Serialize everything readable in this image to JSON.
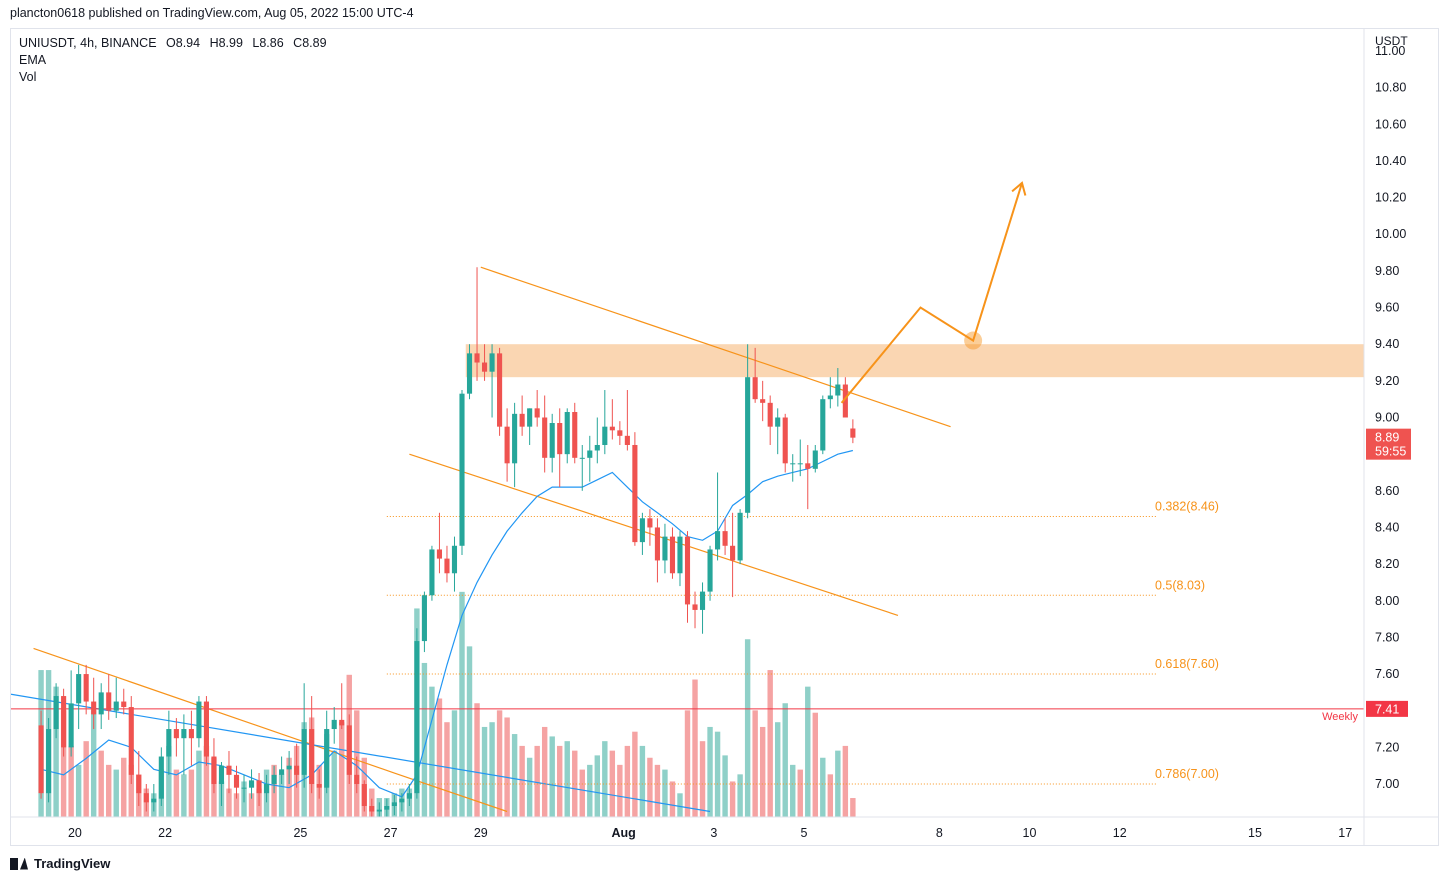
{
  "header": {
    "publisher_line": "plancton0618 published on TradingView.com, Aug 05, 2022 15:00 UTC-4"
  },
  "legend": {
    "symbol": "UNIUSDT, 4h, BINANCE",
    "open": "O8.94",
    "high": "H8.99",
    "low": "L8.86",
    "close": "C8.89",
    "ema_label": "EMA",
    "vol_label": "Vol"
  },
  "footer": {
    "brand": "TradingView"
  },
  "colors": {
    "up": "#26a69a",
    "down": "#ef5350",
    "ema": "#2196f3",
    "drawing": "#f7931a",
    "zone": "#f9cfa5",
    "weekly": "#f23645",
    "vol_up": "#8fd0c8",
    "vol_down": "#f5a3a3",
    "axis_text": "#131722"
  },
  "chart_data": {
    "type": "candlestick",
    "symbol": "UNIUSDT",
    "timeframe": "4h",
    "exchange": "BINANCE",
    "ylabel": "USDT",
    "ylim": [
      6.82,
      11.12
    ],
    "y_ticks": [
      "11.00",
      "10.80",
      "10.60",
      "10.40",
      "10.20",
      "10.00",
      "9.80",
      "9.60",
      "9.40",
      "9.20",
      "9.00",
      "8.60",
      "8.40",
      "8.20",
      "8.00",
      "7.80",
      "7.60",
      "7.20",
      "7.00"
    ],
    "x_ticks": [
      {
        "label": "20",
        "x": 4.5
      },
      {
        "label": "22",
        "x": 16.5
      },
      {
        "label": "25",
        "x": 34.5
      },
      {
        "label": "27",
        "x": 46.5
      },
      {
        "label": "29",
        "x": 58.5
      },
      {
        "label": "Aug",
        "x": 77.5
      },
      {
        "label": "3",
        "x": 89.5
      },
      {
        "label": "5",
        "x": 101.5
      },
      {
        "label": "8",
        "x": 119.5
      },
      {
        "label": "10",
        "x": 131.5
      },
      {
        "label": "12",
        "x": 143.5
      },
      {
        "label": "15",
        "x": 161.5
      },
      {
        "label": "17",
        "x": 173.5
      }
    ],
    "x_range": [
      -4,
      176
    ],
    "candles": [
      [
        7.32,
        7.4,
        6.92,
        6.95
      ],
      [
        6.95,
        7.36,
        6.9,
        7.3
      ],
      [
        7.3,
        7.55,
        7.25,
        7.48
      ],
      [
        7.48,
        7.52,
        7.15,
        7.2
      ],
      [
        7.2,
        7.62,
        7.15,
        7.44
      ],
      [
        7.44,
        7.65,
        7.3,
        7.6
      ],
      [
        7.6,
        7.65,
        7.38,
        7.45
      ],
      [
        7.45,
        7.58,
        7.3,
        7.38
      ],
      [
        7.38,
        7.55,
        7.3,
        7.5
      ],
      [
        7.5,
        7.6,
        7.35,
        7.4
      ],
      [
        7.4,
        7.58,
        7.36,
        7.45
      ],
      [
        7.45,
        7.52,
        7.38,
        7.42
      ],
      [
        7.42,
        7.48,
        7.0,
        7.05
      ],
      [
        7.05,
        7.18,
        6.88,
        6.95
      ],
      [
        6.95,
        7.0,
        6.85,
        6.9
      ],
      [
        6.9,
        7.0,
        6.85,
        6.92
      ],
      [
        6.92,
        7.2,
        6.88,
        7.15
      ],
      [
        7.15,
        7.4,
        7.05,
        7.3
      ],
      [
        7.3,
        7.36,
        7.15,
        7.25
      ],
      [
        7.25,
        7.38,
        7.05,
        7.3
      ],
      [
        7.3,
        7.4,
        7.1,
        7.25
      ],
      [
        7.25,
        7.48,
        7.2,
        7.45
      ],
      [
        7.45,
        7.48,
        7.1,
        7.15
      ],
      [
        7.15,
        7.25,
        6.95,
        7.0
      ],
      [
        7.0,
        7.12,
        6.88,
        7.1
      ],
      [
        7.1,
        7.18,
        6.95,
        7.05
      ],
      [
        7.05,
        7.1,
        6.92,
        6.98
      ],
      [
        6.98,
        7.05,
        6.9,
        6.98
      ],
      [
        6.98,
        7.08,
        6.92,
        7.02
      ],
      [
        7.02,
        7.06,
        6.88,
        6.95
      ],
      [
        6.95,
        7.05,
        6.9,
        7.0
      ],
      [
        7.0,
        7.1,
        6.95,
        7.05
      ],
      [
        7.05,
        7.15,
        7.0,
        7.08
      ],
      [
        7.08,
        7.18,
        7.0,
        7.1
      ],
      [
        7.1,
        7.22,
        6.98,
        7.05
      ],
      [
        7.05,
        7.55,
        6.98,
        7.3
      ],
      [
        7.3,
        7.48,
        6.95,
        7.0
      ],
      [
        7.0,
        7.08,
        6.92,
        6.98
      ],
      [
        6.98,
        7.4,
        6.95,
        7.3
      ],
      [
        7.3,
        7.42,
        7.22,
        7.35
      ],
      [
        7.35,
        7.55,
        7.3,
        7.32
      ],
      [
        7.32,
        7.38,
        7.0,
        7.05
      ],
      [
        7.05,
        7.15,
        6.95,
        7.0
      ],
      [
        7.0,
        7.02,
        6.85,
        6.88
      ],
      [
        6.88,
        6.92,
        6.8,
        6.85
      ],
      [
        6.85,
        6.9,
        6.8,
        6.86
      ],
      [
        6.86,
        6.92,
        6.82,
        6.88
      ],
      [
        6.88,
        6.94,
        6.83,
        6.9
      ],
      [
        6.9,
        6.95,
        6.85,
        6.92
      ],
      [
        6.92,
        7.0,
        6.88,
        6.95
      ],
      [
        6.95,
        7.85,
        6.92,
        7.78
      ],
      [
        7.78,
        8.05,
        7.72,
        8.03
      ],
      [
        8.03,
        8.3,
        8.0,
        8.28
      ],
      [
        8.28,
        8.48,
        8.15,
        8.23
      ],
      [
        8.23,
        8.3,
        8.1,
        8.15
      ],
      [
        8.15,
        8.35,
        8.05,
        8.3
      ],
      [
        8.3,
        9.15,
        8.25,
        9.13
      ],
      [
        9.13,
        9.4,
        9.1,
        9.35
      ],
      [
        9.35,
        9.82,
        9.2,
        9.3
      ],
      [
        9.3,
        9.4,
        9.2,
        9.25
      ],
      [
        9.25,
        9.4,
        9.0,
        9.35
      ],
      [
        9.35,
        9.38,
        8.9,
        8.95
      ],
      [
        8.95,
        9.05,
        8.65,
        8.75
      ],
      [
        8.75,
        9.08,
        8.62,
        9.02
      ],
      [
        9.02,
        9.12,
        8.9,
        8.95
      ],
      [
        8.95,
        9.05,
        8.85,
        9.05
      ],
      [
        9.05,
        9.15,
        8.95,
        9.0
      ],
      [
        9.0,
        9.12,
        8.7,
        8.78
      ],
      [
        8.78,
        9.02,
        8.7,
        8.97
      ],
      [
        8.97,
        9.05,
        8.62,
        8.8
      ],
      [
        8.8,
        9.05,
        8.75,
        9.03
      ],
      [
        9.03,
        9.08,
        8.75,
        8.78
      ],
      [
        8.78,
        8.85,
        8.6,
        8.78
      ],
      [
        8.78,
        8.9,
        8.65,
        8.82
      ],
      [
        8.82,
        9.0,
        8.75,
        8.85
      ],
      [
        8.85,
        9.15,
        8.8,
        8.95
      ],
      [
        8.95,
        9.1,
        8.88,
        8.93
      ],
      [
        8.93,
        8.98,
        8.85,
        8.9
      ],
      [
        8.9,
        9.15,
        8.82,
        8.85
      ],
      [
        8.85,
        8.92,
        8.3,
        8.32
      ],
      [
        8.32,
        8.48,
        8.25,
        8.45
      ],
      [
        8.45,
        8.5,
        8.3,
        8.4
      ],
      [
        8.4,
        8.45,
        8.1,
        8.22
      ],
      [
        8.22,
        8.42,
        8.15,
        8.35
      ],
      [
        8.35,
        8.4,
        8.12,
        8.15
      ],
      [
        8.15,
        8.38,
        8.08,
        8.35
      ],
      [
        8.35,
        8.38,
        7.88,
        7.98
      ],
      [
        7.98,
        8.05,
        7.85,
        7.95
      ],
      [
        7.95,
        8.1,
        7.82,
        8.05
      ],
      [
        8.05,
        8.3,
        8.0,
        8.28
      ],
      [
        8.28,
        8.7,
        8.22,
        8.38
      ],
      [
        8.38,
        8.45,
        8.25,
        8.3
      ],
      [
        8.3,
        8.48,
        8.02,
        8.22
      ],
      [
        8.22,
        8.5,
        8.2,
        8.48
      ],
      [
        8.48,
        9.4,
        8.45,
        9.22
      ],
      [
        9.22,
        9.38,
        9.08,
        9.1
      ],
      [
        9.1,
        9.2,
        8.98,
        9.08
      ],
      [
        9.08,
        9.12,
        8.85,
        8.95
      ],
      [
        8.95,
        9.05,
        8.8,
        9.0
      ],
      [
        9.0,
        9.02,
        8.7,
        8.75
      ],
      [
        8.75,
        8.8,
        8.65,
        8.75
      ],
      [
        8.75,
        8.88,
        8.68,
        8.75
      ],
      [
        8.75,
        8.85,
        8.5,
        8.72
      ],
      [
        8.72,
        8.85,
        8.7,
        8.82
      ],
      [
        8.82,
        9.12,
        8.8,
        9.1
      ],
      [
        9.1,
        9.22,
        9.05,
        9.12
      ],
      [
        9.12,
        9.27,
        9.06,
        9.18
      ],
      [
        9.18,
        9.22,
        9.0,
        9.0
      ],
      [
        8.94,
        8.99,
        8.86,
        8.89
      ]
    ],
    "volume": [
      [
        0.62,
        "up"
      ],
      [
        0.62,
        "up"
      ],
      [
        0.55,
        "up"
      ],
      [
        0.45,
        "down"
      ],
      [
        0.3,
        "down"
      ],
      [
        0.22,
        "up"
      ],
      [
        0.32,
        "down"
      ],
      [
        0.45,
        "up"
      ],
      [
        0.28,
        "down"
      ],
      [
        0.22,
        "down"
      ],
      [
        0.2,
        "up"
      ],
      [
        0.25,
        "down"
      ],
      [
        0.22,
        "down"
      ],
      [
        0.18,
        "down"
      ],
      [
        0.12,
        "down"
      ],
      [
        0.1,
        "up"
      ],
      [
        0.2,
        "up"
      ],
      [
        0.3,
        "up"
      ],
      [
        0.2,
        "down"
      ],
      [
        0.18,
        "up"
      ],
      [
        0.2,
        "down"
      ],
      [
        0.28,
        "up"
      ],
      [
        0.3,
        "down"
      ],
      [
        0.25,
        "down"
      ],
      [
        0.15,
        "up"
      ],
      [
        0.12,
        "down"
      ],
      [
        0.1,
        "down"
      ],
      [
        0.15,
        "up"
      ],
      [
        0.1,
        "down"
      ],
      [
        0.12,
        "down"
      ],
      [
        0.2,
        "up"
      ],
      [
        0.22,
        "down"
      ],
      [
        0.18,
        "up"
      ],
      [
        0.25,
        "down"
      ],
      [
        0.3,
        "down"
      ],
      [
        0.4,
        "up"
      ],
      [
        0.42,
        "down"
      ],
      [
        0.22,
        "down"
      ],
      [
        0.35,
        "up"
      ],
      [
        0.28,
        "up"
      ],
      [
        0.4,
        "down"
      ],
      [
        0.6,
        "down"
      ],
      [
        0.45,
        "down"
      ],
      [
        0.25,
        "down"
      ],
      [
        0.12,
        "down"
      ],
      [
        0.08,
        "up"
      ],
      [
        0.08,
        "up"
      ],
      [
        0.1,
        "up"
      ],
      [
        0.12,
        "up"
      ],
      [
        0.12,
        "up"
      ],
      [
        0.88,
        "up"
      ],
      [
        0.65,
        "up"
      ],
      [
        0.55,
        "up"
      ],
      [
        0.5,
        "down"
      ],
      [
        0.4,
        "down"
      ],
      [
        0.45,
        "up"
      ],
      [
        0.95,
        "up"
      ],
      [
        0.72,
        "up"
      ],
      [
        0.48,
        "down"
      ],
      [
        0.38,
        "up"
      ],
      [
        0.4,
        "up"
      ],
      [
        0.45,
        "down"
      ],
      [
        0.42,
        "down"
      ],
      [
        0.35,
        "up"
      ],
      [
        0.3,
        "down"
      ],
      [
        0.25,
        "up"
      ],
      [
        0.3,
        "down"
      ],
      [
        0.38,
        "down"
      ],
      [
        0.34,
        "up"
      ],
      [
        0.3,
        "down"
      ],
      [
        0.32,
        "up"
      ],
      [
        0.28,
        "down"
      ],
      [
        0.2,
        "down"
      ],
      [
        0.22,
        "up"
      ],
      [
        0.26,
        "up"
      ],
      [
        0.32,
        "up"
      ],
      [
        0.28,
        "down"
      ],
      [
        0.22,
        "down"
      ],
      [
        0.3,
        "down"
      ],
      [
        0.36,
        "down"
      ],
      [
        0.3,
        "up"
      ],
      [
        0.25,
        "down"
      ],
      [
        0.22,
        "down"
      ],
      [
        0.2,
        "up"
      ],
      [
        0.15,
        "down"
      ],
      [
        0.1,
        "up"
      ],
      [
        0.45,
        "down"
      ],
      [
        0.58,
        "down"
      ],
      [
        0.32,
        "down"
      ],
      [
        0.38,
        "up"
      ],
      [
        0.36,
        "up"
      ],
      [
        0.26,
        "up"
      ],
      [
        0.15,
        "down"
      ],
      [
        0.18,
        "up"
      ],
      [
        0.75,
        "up"
      ],
      [
        0.45,
        "down"
      ],
      [
        0.38,
        "down"
      ],
      [
        0.62,
        "down"
      ],
      [
        0.4,
        "up"
      ],
      [
        0.48,
        "up"
      ],
      [
        0.22,
        "up"
      ],
      [
        0.2,
        "down"
      ],
      [
        0.55,
        "up"
      ],
      [
        0.44,
        "down"
      ],
      [
        0.25,
        "up"
      ],
      [
        0.18,
        "down"
      ],
      [
        0.28,
        "up"
      ],
      [
        0.3,
        "down"
      ],
      [
        0.08,
        "down"
      ]
    ],
    "ema": [
      [
        0,
        7.08
      ],
      [
        3,
        7.05
      ],
      [
        6,
        7.14
      ],
      [
        9,
        7.24
      ],
      [
        12,
        7.2
      ],
      [
        15,
        7.08
      ],
      [
        18,
        7.05
      ],
      [
        21,
        7.12
      ],
      [
        24,
        7.1
      ],
      [
        27,
        7.05
      ],
      [
        30,
        7.0
      ],
      [
        33,
        6.98
      ],
      [
        36,
        7.05
      ],
      [
        39,
        7.18
      ],
      [
        42,
        7.1
      ],
      [
        45,
        6.98
      ],
      [
        48,
        6.93
      ],
      [
        50,
        7.05
      ],
      [
        52,
        7.35
      ],
      [
        54,
        7.65
      ],
      [
        56,
        7.92
      ],
      [
        58,
        8.1
      ],
      [
        60,
        8.25
      ],
      [
        62,
        8.38
      ],
      [
        64,
        8.48
      ],
      [
        66,
        8.57
      ],
      [
        68,
        8.62
      ],
      [
        70,
        8.62
      ],
      [
        72,
        8.62
      ],
      [
        74,
        8.66
      ],
      [
        76,
        8.7
      ],
      [
        78,
        8.62
      ],
      [
        80,
        8.54
      ],
      [
        82,
        8.48
      ],
      [
        84,
        8.42
      ],
      [
        86,
        8.35
      ],
      [
        88,
        8.33
      ],
      [
        90,
        8.38
      ],
      [
        92,
        8.52
      ],
      [
        94,
        8.58
      ],
      [
        96,
        8.65
      ],
      [
        98,
        8.68
      ],
      [
        100,
        8.7
      ],
      [
        102,
        8.72
      ],
      [
        104,
        8.76
      ],
      [
        106,
        8.8
      ],
      [
        108,
        8.82
      ]
    ],
    "zone": {
      "y_from": 9.22,
      "y_to": 9.4,
      "x_from": 56.5
    },
    "channel_upper": [
      [
        58.5,
        9.82
      ],
      [
        121,
        8.95
      ]
    ],
    "channel_lower": [
      [
        49,
        8.8
      ],
      [
        114,
        7.92
      ]
    ],
    "old_trendline": [
      [
        -1,
        7.74
      ],
      [
        47,
        7.06
      ],
      [
        62,
        6.85
      ]
    ],
    "ema_trend_line": [
      [
        -4,
        7.49
      ],
      [
        89,
        6.85
      ]
    ],
    "projection_path": [
      [
        106.5,
        9.08
      ],
      [
        117,
        9.6
      ],
      [
        124,
        9.42
      ],
      [
        130.5,
        10.28
      ]
    ],
    "projection_point": [
      124,
      9.42
    ],
    "fib_levels": [
      {
        "label": "0.382(8.46)",
        "value": 8.46
      },
      {
        "label": "0.5(8.03)",
        "value": 8.03
      },
      {
        "label": "0.618(7.60)",
        "value": 7.6
      },
      {
        "label": "0.786(7.00)",
        "value": 7.0
      }
    ],
    "fib_x_range": [
      46,
      148.5
    ],
    "weekly_level": {
      "label": "Weekly",
      "value": 7.41,
      "price_label": "7.41"
    },
    "last_price": {
      "price": "8.89",
      "countdown": "59:55",
      "value": 8.89
    }
  }
}
